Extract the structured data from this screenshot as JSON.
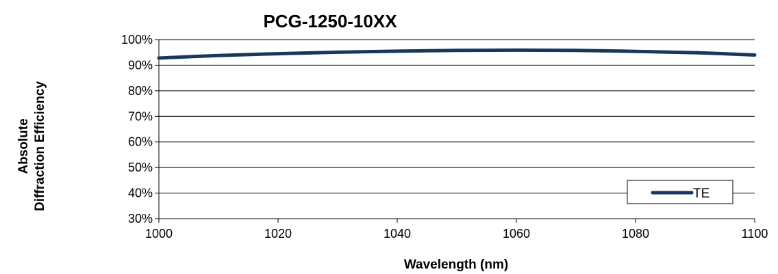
{
  "chart_data": {
    "type": "line",
    "title": "PCG-1250-10XX",
    "xlabel": "Wavelength (nm)",
    "ylabel_lines": [
      "Absolute",
      "Diffraction Efficiency"
    ],
    "xlim": [
      1000,
      1100
    ],
    "ylim": [
      30,
      100
    ],
    "x_ticks": [
      1000,
      1020,
      1040,
      1060,
      1080,
      1100
    ],
    "y_ticks": [
      30,
      40,
      50,
      60,
      70,
      80,
      90,
      100
    ],
    "y_tick_labels": [
      "30%",
      "40%",
      "50%",
      "60%",
      "70%",
      "80%",
      "90%",
      "100%"
    ],
    "grid": "horizontal",
    "legend_position": "bottom-right",
    "series": [
      {
        "name": "TE",
        "color": "#17375e",
        "x": [
          1000,
          1010,
          1020,
          1030,
          1040,
          1050,
          1060,
          1070,
          1080,
          1090,
          1100
        ],
        "y": [
          92.8,
          93.8,
          94.5,
          95.1,
          95.5,
          95.8,
          95.9,
          95.8,
          95.4,
          94.9,
          94.0
        ]
      }
    ]
  }
}
